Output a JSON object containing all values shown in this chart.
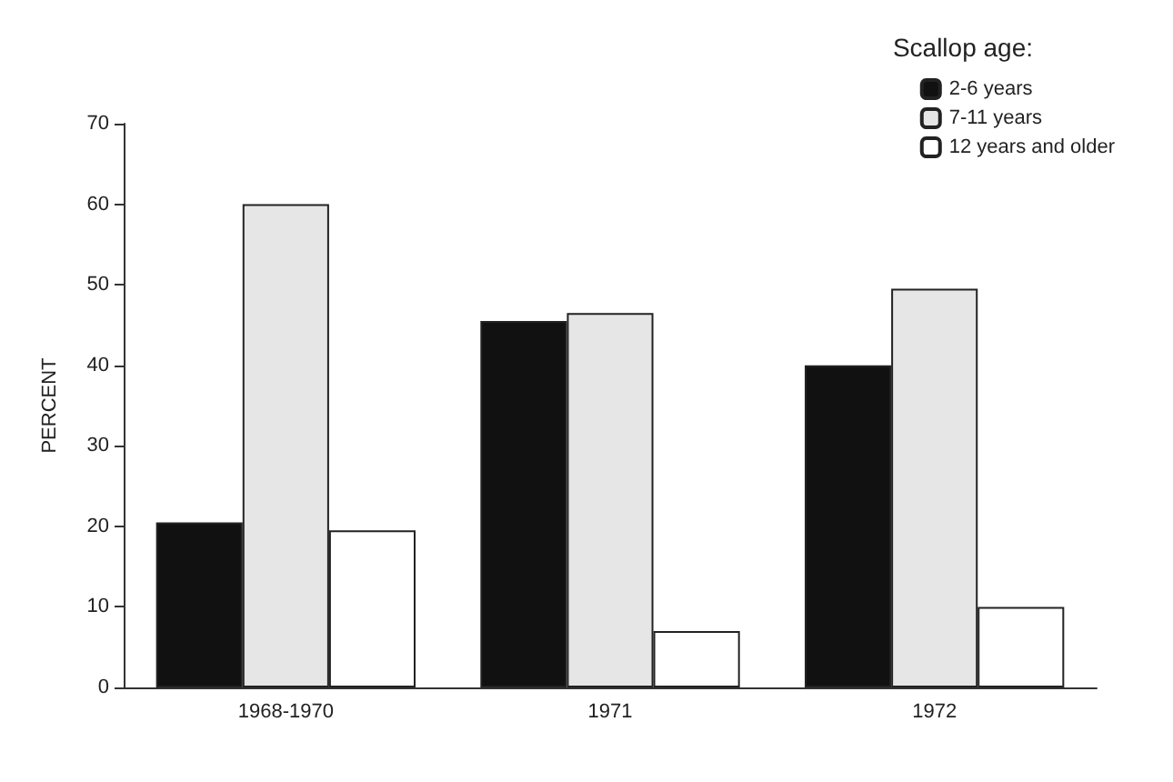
{
  "chart_data": {
    "type": "bar",
    "ylabel": "PERCENT",
    "legend_title": "Scallop age:",
    "categories": [
      "1968-1970",
      "1971",
      "1972"
    ],
    "series": [
      {
        "name": "2-6 years",
        "color": "#111111",
        "values": [
          20.5,
          45.5,
          40
        ]
      },
      {
        "name": "7-11 years",
        "color": "#e6e6e6",
        "values": [
          60,
          46.5,
          49.5
        ]
      },
      {
        "name": "12 years and older",
        "color": "#ffffff",
        "values": [
          19.5,
          7,
          10
        ]
      }
    ],
    "ylim": [
      0,
      70
    ],
    "yticks": [
      0,
      10,
      20,
      30,
      40,
      50,
      60,
      70
    ],
    "grid": false,
    "legend": "top right"
  }
}
